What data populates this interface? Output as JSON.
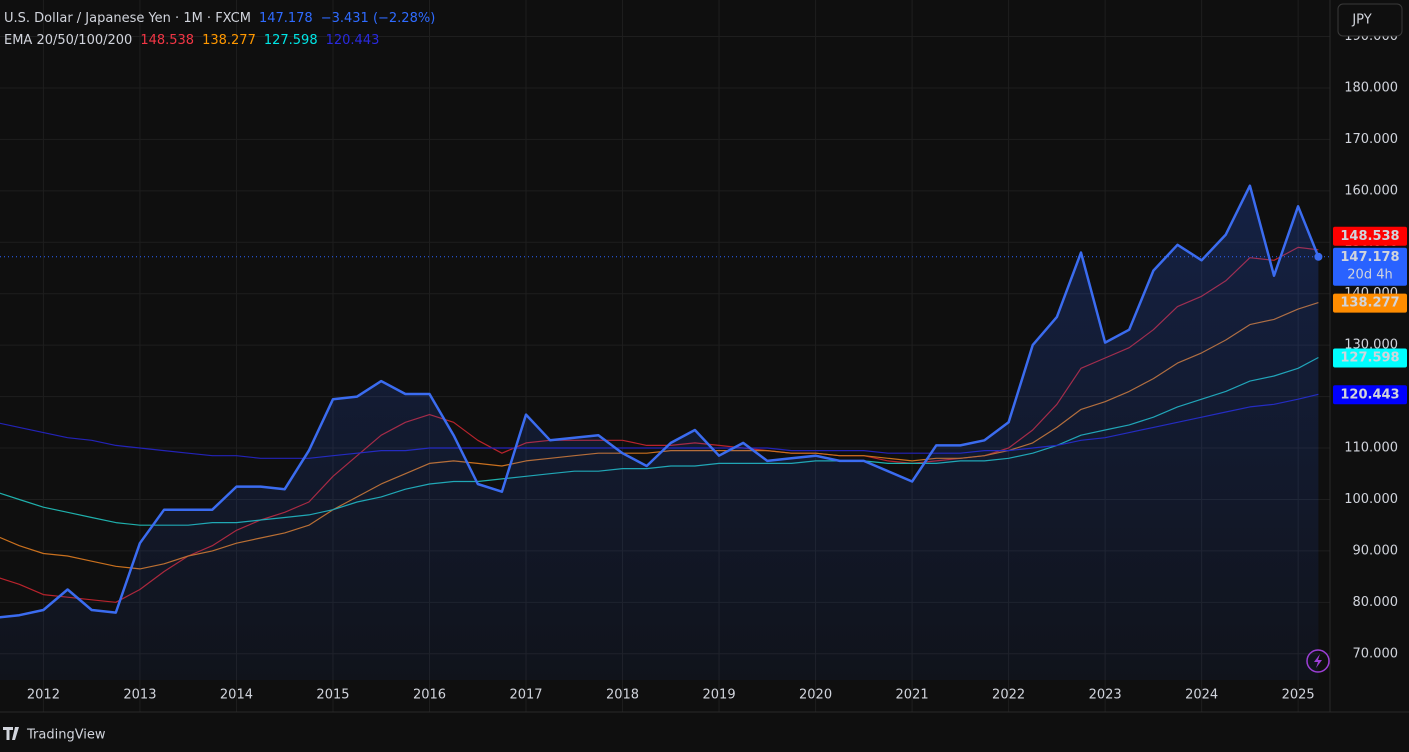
{
  "header": {
    "symbol": "U.S. Dollar / Japanese Yen · 1M · FXCM",
    "change": "−3.431 (−2.28%)",
    "indicator": "EMA 20/50/100/200",
    "currency": "JPY",
    "countdown": "20d 4h",
    "brand": "TradingView"
  },
  "chart_data": {
    "type": "line",
    "x": [
      2011.5,
      2011.75,
      2012,
      2012.25,
      2012.5,
      2012.75,
      2013,
      2013.25,
      2013.5,
      2013.75,
      2014,
      2014.25,
      2014.5,
      2014.75,
      2015,
      2015.25,
      2015.5,
      2015.75,
      2016,
      2016.25,
      2016.5,
      2016.75,
      2017,
      2017.25,
      2017.5,
      2017.75,
      2018,
      2018.25,
      2018.5,
      2018.75,
      2019,
      2019.25,
      2019.5,
      2019.75,
      2020,
      2020.25,
      2020.5,
      2020.75,
      2021,
      2021.25,
      2021.5,
      2021.75,
      2022,
      2022.25,
      2022.5,
      2022.75,
      2023,
      2023.25,
      2023.5,
      2023.75,
      2024,
      2024.25,
      2024.5,
      2024.75,
      2025,
      2025.21
    ],
    "series": [
      {
        "color": "#3b6cf0",
        "label_color": "#2962ff",
        "area": true,
        "values": [
          77.0,
          77.5,
          78.5,
          82.5,
          78.5,
          78.0,
          91.5,
          98,
          98,
          98,
          102.5,
          102.5,
          102,
          109.5,
          119.5,
          120,
          123,
          120.5,
          120.5,
          112.5,
          103,
          101.5,
          116.5,
          111.5,
          112,
          112.5,
          109,
          106.5,
          111,
          113.5,
          108.5,
          111,
          107.5,
          108,
          108.5,
          107.5,
          107.5,
          105.5,
          103.5,
          110.5,
          110.5,
          111.5,
          115,
          130,
          135.5,
          148,
          130.5,
          133,
          144.5,
          149.5,
          146.5,
          151.5,
          161,
          143.5,
          157,
          147.178
        ]
      },
      {
        "color": "#b8232c",
        "label_color": "#ff0000",
        "values": [
          85,
          83.5,
          81.5,
          81,
          80.5,
          80,
          82.5,
          86,
          89,
          91,
          94,
          96,
          97.5,
          99.5,
          104.5,
          108.5,
          112.5,
          115,
          116.5,
          115,
          111.5,
          109,
          111,
          111.5,
          111.5,
          111.5,
          111.5,
          110.5,
          110.5,
          111,
          110.5,
          110,
          109.5,
          109,
          109,
          108.5,
          108.5,
          107.5,
          107,
          107.5,
          108,
          108.5,
          110,
          113.5,
          118.5,
          125.5,
          127.5,
          129.5,
          133,
          137.5,
          139.5,
          142.5,
          147,
          146.5,
          149,
          148.538
        ]
      },
      {
        "color": "#c9701e",
        "label_color": "#ff8c00",
        "values": [
          93,
          91,
          89.5,
          89,
          88,
          87,
          86.5,
          87.5,
          89,
          90,
          91.5,
          92.5,
          93.5,
          95,
          98,
          100.5,
          103,
          105,
          107,
          107.5,
          107,
          106.5,
          107.5,
          108,
          108.5,
          109,
          109,
          109,
          109.5,
          109.5,
          109.5,
          109.5,
          109.5,
          109,
          109,
          108.5,
          108.5,
          108,
          107.5,
          108,
          108,
          108.5,
          109.5,
          111,
          114,
          117.5,
          119,
          121,
          123.5,
          126.5,
          128.5,
          131,
          134,
          135,
          137,
          138.277
        ]
      },
      {
        "color": "#1fb0ac",
        "label_color": "#00ffff",
        "values": [
          101.5,
          100,
          98.5,
          97.5,
          96.5,
          95.5,
          95,
          95,
          95,
          95.5,
          95.5,
          96,
          96.5,
          97,
          98,
          99.5,
          100.5,
          102,
          103,
          103.5,
          103.5,
          104,
          104.5,
          105,
          105.5,
          105.5,
          106,
          106,
          106.5,
          106.5,
          107,
          107,
          107,
          107,
          107.5,
          107.5,
          107.5,
          107,
          107,
          107,
          107.5,
          107.5,
          108,
          109,
          110.5,
          112.5,
          113.5,
          114.5,
          116,
          118,
          119.5,
          121,
          123,
          124,
          125.5,
          127.598
        ]
      },
      {
        "color": "#2323b8",
        "label_color": "#0000ff",
        "values": [
          115,
          114,
          113,
          112,
          111.5,
          110.5,
          110,
          109.5,
          109,
          108.5,
          108.5,
          108,
          108,
          108,
          108.5,
          109,
          109.5,
          109.5,
          110,
          110,
          110,
          110,
          110,
          110,
          110,
          110,
          110,
          110,
          110,
          110,
          110,
          110,
          110,
          109.5,
          109.5,
          109.5,
          109.5,
          109,
          109,
          109,
          109,
          109.5,
          109.5,
          110,
          110.5,
          111.5,
          112,
          113,
          114,
          115,
          116,
          117,
          118,
          118.5,
          119.5,
          120.443
        ]
      }
    ],
    "xlim": [
      2011.55,
      2025.33
    ],
    "xticks": [
      2012,
      2013,
      2014,
      2015,
      2016,
      2017,
      2018,
      2019,
      2020,
      2021,
      2022,
      2023,
      2024,
      2025
    ],
    "ylim": [
      64.9,
      197.1
    ],
    "yticks": [
      {
        "value": 70,
        "label": "70.000"
      },
      {
        "value": 80,
        "label": "80.000"
      },
      {
        "value": 90,
        "label": "90.000"
      },
      {
        "value": 100,
        "label": "100.000"
      },
      {
        "value": 110,
        "label": "110.000"
      },
      {
        "value": 120,
        "label": "120.000"
      },
      {
        "value": 130,
        "label": "130.000"
      },
      {
        "value": 140,
        "label": "140.000"
      },
      {
        "value": 150,
        "label": "150.000"
      },
      {
        "value": 160,
        "label": "160.000"
      },
      {
        "value": 170,
        "label": "170.000"
      },
      {
        "value": 180,
        "label": "180.000"
      },
      {
        "value": 190,
        "label": "190.000"
      }
    ],
    "grid": true
  }
}
